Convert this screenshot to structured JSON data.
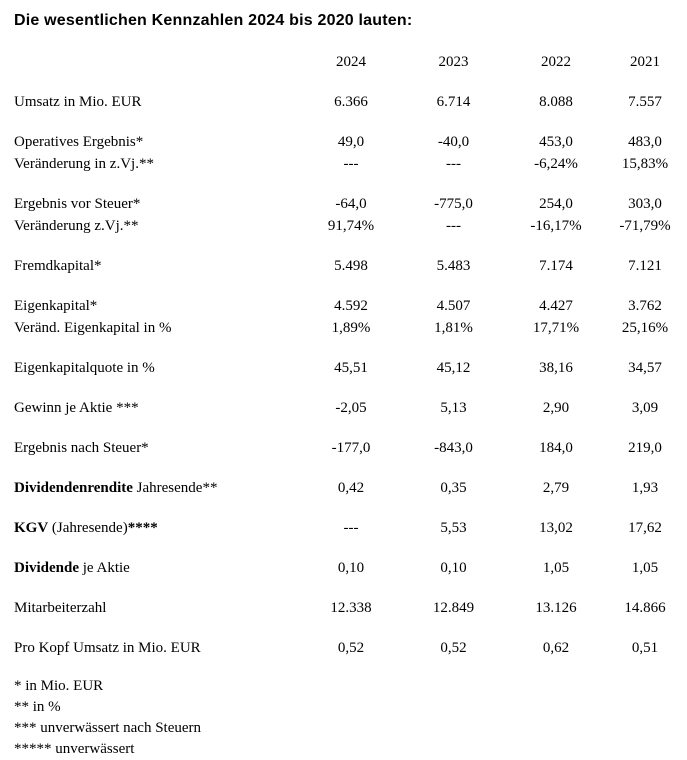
{
  "title": "Die wesentlichen Kennzahlen 2024 bis 2020 lauten:",
  "table": {
    "columns": [
      "2024",
      "2023",
      "2022",
      "2021"
    ],
    "groups": [
      {
        "lines": [
          {
            "label": [
              {
                "text": "Umsatz in Mio. EUR",
                "bold": false
              }
            ],
            "values": [
              "6.366",
              "6.714",
              "8.088",
              "7.557"
            ]
          }
        ]
      },
      {
        "lines": [
          {
            "label": [
              {
                "text": "Operatives Ergebnis*",
                "bold": false
              }
            ],
            "values": [
              "49,0",
              "-40,0",
              "453,0",
              "483,0"
            ]
          },
          {
            "label": [
              {
                "text": "Veränderung in z.Vj.**",
                "bold": false
              }
            ],
            "values": [
              "---",
              "---",
              "-6,24%",
              "15,83%"
            ]
          }
        ]
      },
      {
        "lines": [
          {
            "label": [
              {
                "text": "Ergebnis vor Steuer*",
                "bold": false
              }
            ],
            "values": [
              "-64,0",
              "-775,0",
              "254,0",
              "303,0"
            ]
          },
          {
            "label": [
              {
                "text": "Veränderung z.Vj.**",
                "bold": false
              }
            ],
            "values": [
              "91,74%",
              "---",
              "-16,17%",
              "-71,79%"
            ]
          }
        ]
      },
      {
        "lines": [
          {
            "label": [
              {
                "text": "Fremdkapital*",
                "bold": false
              }
            ],
            "values": [
              "5.498",
              "5.483",
              "7.174",
              "7.121"
            ]
          }
        ]
      },
      {
        "lines": [
          {
            "label": [
              {
                "text": "Eigenkapital*",
                "bold": false
              }
            ],
            "values": [
              "4.592",
              "4.507",
              "4.427",
              "3.762"
            ]
          },
          {
            "label": [
              {
                "text": "Veränd. Eigenkapital in %",
                "bold": false
              }
            ],
            "values": [
              "1,89%",
              "1,81%",
              "17,71%",
              "25,16%"
            ]
          }
        ]
      },
      {
        "lines": [
          {
            "label": [
              {
                "text": "Eigenkapitalquote in %",
                "bold": false
              }
            ],
            "values": [
              "45,51",
              "45,12",
              "38,16",
              "34,57"
            ]
          }
        ]
      },
      {
        "lines": [
          {
            "label": [
              {
                "text": "Gewinn je Aktie ***",
                "bold": false
              }
            ],
            "values": [
              "-2,05",
              "5,13",
              "2,90",
              "3,09"
            ]
          }
        ]
      },
      {
        "lines": [
          {
            "label": [
              {
                "text": "Ergebnis nach Steuer*",
                "bold": false
              }
            ],
            "values": [
              "-177,0",
              "-843,0",
              "184,0",
              "219,0"
            ]
          }
        ]
      },
      {
        "lines": [
          {
            "label": [
              {
                "text": "Dividendenrendite",
                "bold": true
              },
              {
                "text": " Jahresende**",
                "bold": false
              }
            ],
            "values": [
              "0,42",
              "0,35",
              "2,79",
              "1,93"
            ]
          }
        ]
      },
      {
        "lines": [
          {
            "label": [
              {
                "text": "KGV",
                "bold": true
              },
              {
                "text": " (Jahresende)",
                "bold": false
              },
              {
                "text": "****",
                "bold": true
              }
            ],
            "values": [
              "---",
              "5,53",
              "13,02",
              "17,62"
            ]
          }
        ]
      },
      {
        "lines": [
          {
            "label": [
              {
                "text": "Dividende",
                "bold": true
              },
              {
                "text": " je Aktie",
                "bold": false
              }
            ],
            "values": [
              "0,10",
              "0,10",
              "1,05",
              "1,05"
            ]
          }
        ]
      },
      {
        "lines": [
          {
            "label": [
              {
                "text": "Mitarbeiterzahl",
                "bold": false
              }
            ],
            "values": [
              "12.338",
              "12.849",
              "13.126",
              "14.866"
            ]
          }
        ]
      },
      {
        "lines": [
          {
            "label": [
              {
                "text": "Pro Kopf Umsatz in Mio. EUR",
                "bold": false
              }
            ],
            "values": [
              "0,52",
              "0,52",
              "0,62",
              "0,51"
            ]
          }
        ]
      }
    ]
  },
  "footnotes": [
    "* in Mio. EUR",
    "** in %",
    "*** unverwässert nach Steuern",
    "***** unverwässert"
  ]
}
